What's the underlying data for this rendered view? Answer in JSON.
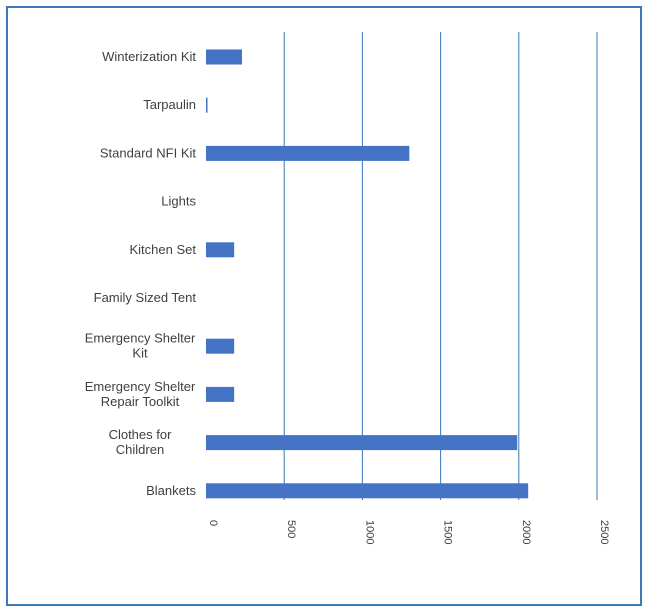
{
  "chart_data": {
    "type": "bar",
    "orientation": "horizontal",
    "categories": [
      [
        "Winterization Kit"
      ],
      [
        "Tarpaulin"
      ],
      [
        "Standard NFI Kit"
      ],
      [
        "Lights"
      ],
      [
        "Kitchen Set"
      ],
      [
        "Family Sized Tent"
      ],
      [
        "Emergency Shelter",
        "Kit"
      ],
      [
        "Emergency Shelter",
        "Repair Toolkit"
      ],
      [
        "Clothes for",
        "Children"
      ],
      [
        "Blankets"
      ]
    ],
    "values": [
      230,
      8,
      1300,
      0,
      180,
      0,
      180,
      180,
      1990,
      2060
    ],
    "xlim": [
      0,
      2500
    ],
    "xticks": [
      0,
      500,
      1000,
      1500,
      2000,
      2500
    ],
    "xtick_labels": [
      "0",
      "500",
      "1000",
      "1500",
      "2000",
      "2500"
    ],
    "grid": true,
    "colors": {
      "bar": "#4472c4",
      "grid": "#3a78b8",
      "frame": "#3a78b8"
    }
  }
}
